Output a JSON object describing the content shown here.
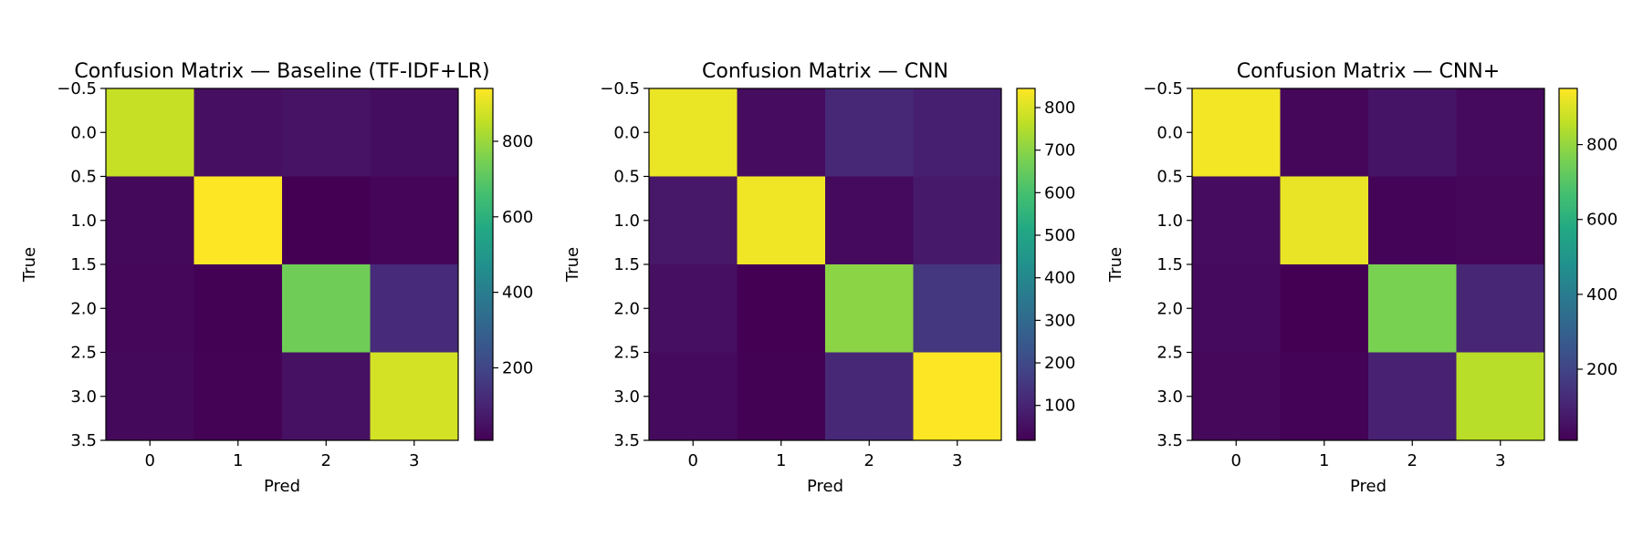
{
  "chart_data": [
    {
      "type": "heatmap",
      "title": "Confusion Matrix — Baseline (TF-IDF+LR)",
      "xlabel": "Pred",
      "ylabel": "True",
      "x_ticks": [
        "0",
        "1",
        "2",
        "3"
      ],
      "y_ticks": [
        "−0.5",
        "0.0",
        "0.5",
        "1.0",
        "1.5",
        "2.0",
        "2.5",
        "3.0",
        "3.5"
      ],
      "y_range": [
        -0.5,
        3.5
      ],
      "colormap": "viridis",
      "vmin": 8,
      "vmax": 940,
      "colorbar_ticks": [
        200,
        400,
        600,
        800
      ],
      "matrix": [
        [
          860,
          45,
          55,
          40
        ],
        [
          30,
          940,
          8,
          22
        ],
        [
          25,
          10,
          735,
          120
        ],
        [
          28,
          12,
          50,
          880
        ]
      ]
    },
    {
      "type": "heatmap",
      "title": "Confusion Matrix — CNN",
      "xlabel": "Pred",
      "ylabel": "True",
      "x_ticks": [
        "0",
        "1",
        "2",
        "3"
      ],
      "y_ticks": [
        "−0.5",
        "0.0",
        "0.5",
        "1.0",
        "1.5",
        "2.0",
        "2.5",
        "3.0",
        "3.5"
      ],
      "y_range": [
        -0.5,
        3.5
      ],
      "colormap": "viridis",
      "vmin": 18,
      "vmax": 845,
      "colorbar_ticks": [
        100,
        200,
        300,
        400,
        500,
        600,
        700,
        800
      ],
      "colorbar_tick_labels": [
        "100",
        "200",
        "300",
        "400",
        "500",
        "600",
        "700",
        "800"
      ],
      "matrix": [
        [
          820,
          45,
          110,
          90
        ],
        [
          70,
          830,
          40,
          75
        ],
        [
          50,
          18,
          700,
          150
        ],
        [
          40,
          20,
          110,
          845
        ]
      ]
    },
    {
      "type": "heatmap",
      "title": "Confusion Matrix — CNN+",
      "xlabel": "Pred",
      "ylabel": "True",
      "x_ticks": [
        "0",
        "1",
        "2",
        "3"
      ],
      "y_ticks": [
        "−0.5",
        "0.0",
        "0.5",
        "1.0",
        "1.5",
        "2.0",
        "2.5",
        "3.0",
        "3.5"
      ],
      "y_range": [
        -0.5,
        3.5
      ],
      "colormap": "viridis",
      "vmin": 10,
      "vmax": 950,
      "colorbar_ticks": [
        200,
        400,
        600,
        800
      ],
      "matrix": [
        [
          935,
          25,
          60,
          35
        ],
        [
          40,
          920,
          20,
          25
        ],
        [
          35,
          10,
          760,
          110
        ],
        [
          30,
          15,
          95,
          850
        ]
      ]
    }
  ]
}
